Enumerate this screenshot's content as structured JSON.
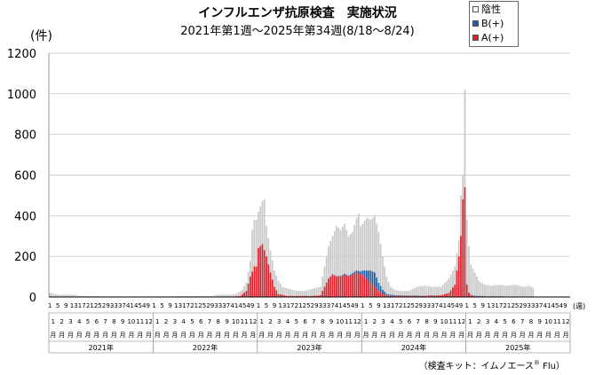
{
  "chart_data": {
    "type": "bar",
    "stacked": true,
    "title": "インフルエンザ抗原検査　実施状況",
    "subtitle": "2021年第1週〜2025年第34週(8/18〜8/24)",
    "ylabel": "(件)",
    "xlabel": "(週)",
    "ylim": [
      0,
      1200
    ],
    "yticks": [
      0,
      200,
      400,
      600,
      800,
      1000,
      1200
    ],
    "grid": true,
    "legend_placement": "top-right",
    "colors": {
      "negative": "#c8c8c8",
      "b_positive": "#1f5fa8",
      "a_positive": "#e0202a"
    },
    "series": [
      {
        "name": "陰性",
        "color": "#c8c8c8"
      },
      {
        "name": "B(+)",
        "color": "#1f5fa8"
      },
      {
        "name": "A(+)",
        "color": "#e0202a"
      }
    ],
    "week_ticks": [
      "1",
      "5",
      "9",
      "13",
      "17",
      "21",
      "25",
      "29",
      "33",
      "37",
      "41",
      "45",
      "49"
    ],
    "month_ticks": [
      "1",
      "2",
      "3",
      "4",
      "5",
      "6",
      "7",
      "8",
      "9",
      "10",
      "11",
      "12"
    ],
    "month_suffix": "月",
    "years": [
      "2021年",
      "2022年",
      "2023年",
      "2024年",
      "2025年"
    ],
    "weeks_per_year": 52,
    "weeks_shown_2025": 34,
    "year_data": [
      {
        "year": "2021年",
        "anchors_total": [
          [
            1,
            20
          ],
          [
            3,
            15
          ],
          [
            6,
            10
          ],
          [
            10,
            12
          ],
          [
            13,
            10
          ],
          [
            16,
            6
          ],
          [
            20,
            4
          ],
          [
            30,
            3
          ],
          [
            40,
            2
          ],
          [
            52,
            2
          ]
        ],
        "anchors_a": [
          [
            1,
            0
          ],
          [
            52,
            0
          ]
        ],
        "anchors_b": [
          [
            1,
            0
          ],
          [
            52,
            0
          ]
        ]
      },
      {
        "year": "2022年",
        "anchors_total": [
          [
            1,
            3
          ],
          [
            20,
            4
          ],
          [
            30,
            5
          ],
          [
            34,
            12
          ],
          [
            38,
            10
          ],
          [
            42,
            15
          ],
          [
            45,
            35
          ],
          [
            47,
            70
          ],
          [
            49,
            180
          ],
          [
            50,
            330
          ],
          [
            51,
            380
          ]
        ],
        "anchors_a": [
          [
            1,
            0
          ],
          [
            30,
            0
          ],
          [
            40,
            0
          ],
          [
            44,
            5
          ],
          [
            47,
            30
          ],
          [
            49,
            100
          ],
          [
            51,
            150
          ]
        ],
        "anchors_b": [
          [
            1,
            0
          ],
          [
            51,
            0
          ]
        ]
      },
      {
        "year": "2023年",
        "anchors_total": [
          [
            1,
            420
          ],
          [
            3,
            470
          ],
          [
            4,
            480
          ],
          [
            5,
            350
          ],
          [
            7,
            230
          ],
          [
            9,
            130
          ],
          [
            11,
            80
          ],
          [
            13,
            50
          ],
          [
            16,
            40
          ],
          [
            20,
            30
          ],
          [
            24,
            30
          ],
          [
            28,
            40
          ],
          [
            32,
            50
          ],
          [
            34,
            150
          ],
          [
            36,
            250
          ],
          [
            38,
            300
          ],
          [
            40,
            350
          ],
          [
            42,
            330
          ],
          [
            44,
            360
          ],
          [
            46,
            300
          ],
          [
            48,
            320
          ],
          [
            50,
            390
          ],
          [
            51,
            410
          ],
          [
            52,
            350
          ]
        ],
        "anchors_a": [
          [
            1,
            240
          ],
          [
            3,
            260
          ],
          [
            5,
            200
          ],
          [
            7,
            120
          ],
          [
            9,
            50
          ],
          [
            11,
            15
          ],
          [
            15,
            5
          ],
          [
            28,
            5
          ],
          [
            32,
            8
          ],
          [
            34,
            50
          ],
          [
            36,
            90
          ],
          [
            38,
            110
          ],
          [
            40,
            100
          ],
          [
            42,
            100
          ],
          [
            44,
            110
          ],
          [
            46,
            100
          ],
          [
            48,
            110
          ],
          [
            50,
            120
          ],
          [
            52,
            110
          ]
        ],
        "anchors_b": [
          [
            1,
            0
          ],
          [
            30,
            0
          ],
          [
            40,
            2
          ],
          [
            46,
            5
          ],
          [
            50,
            10
          ],
          [
            52,
            15
          ]
        ]
      },
      {
        "year": "2024年",
        "anchors_total": [
          [
            1,
            360
          ],
          [
            3,
            390
          ],
          [
            5,
            380
          ],
          [
            7,
            400
          ],
          [
            9,
            320
          ],
          [
            11,
            200
          ],
          [
            13,
            100
          ],
          [
            15,
            50
          ],
          [
            17,
            35
          ],
          [
            20,
            30
          ],
          [
            24,
            30
          ],
          [
            28,
            50
          ],
          [
            32,
            55
          ],
          [
            36,
            50
          ],
          [
            40,
            50
          ],
          [
            44,
            90
          ],
          [
            47,
            150
          ],
          [
            49,
            280
          ],
          [
            50,
            500
          ],
          [
            51,
            600
          ],
          [
            52,
            1020
          ]
        ],
        "anchors_a": [
          [
            1,
            110
          ],
          [
            3,
            90
          ],
          [
            5,
            70
          ],
          [
            7,
            50
          ],
          [
            9,
            30
          ],
          [
            11,
            15
          ],
          [
            14,
            5
          ],
          [
            30,
            5
          ],
          [
            40,
            8
          ],
          [
            44,
            20
          ],
          [
            47,
            60
          ],
          [
            49,
            200
          ],
          [
            50,
            300
          ],
          [
            51,
            480
          ],
          [
            52,
            540
          ]
        ],
        "anchors_b": [
          [
            1,
            20
          ],
          [
            3,
            40
          ],
          [
            5,
            60
          ],
          [
            7,
            70
          ],
          [
            9,
            40
          ],
          [
            11,
            20
          ],
          [
            13,
            8
          ],
          [
            18,
            3
          ],
          [
            40,
            0
          ],
          [
            52,
            0
          ]
        ]
      },
      {
        "year": "2025年",
        "anchors_total": [
          [
            1,
            380
          ],
          [
            2,
            250
          ],
          [
            3,
            160
          ],
          [
            5,
            120
          ],
          [
            7,
            80
          ],
          [
            10,
            60
          ],
          [
            13,
            55
          ],
          [
            17,
            60
          ],
          [
            21,
            55
          ],
          [
            25,
            60
          ],
          [
            29,
            50
          ],
          [
            32,
            55
          ],
          [
            34,
            45
          ]
        ],
        "anchors_a": [
          [
            1,
            60
          ],
          [
            2,
            20
          ],
          [
            3,
            8
          ],
          [
            5,
            3
          ],
          [
            34,
            0
          ]
        ],
        "anchors_b": [
          [
            1,
            2
          ],
          [
            34,
            0
          ]
        ]
      }
    ],
    "note": "（検査キット：イムノエース",
    "note_reg": "®",
    "note_tail": " Flu）"
  }
}
